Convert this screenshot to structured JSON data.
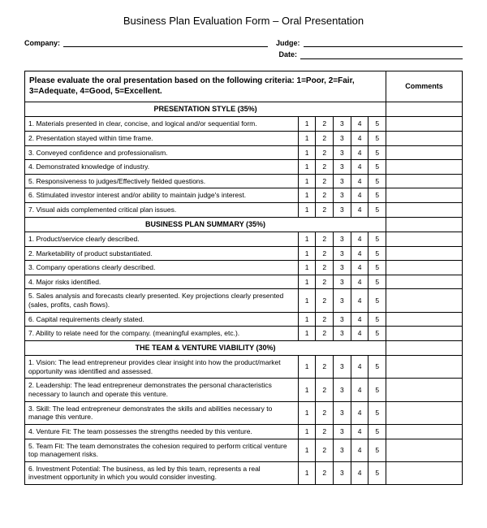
{
  "title": "Business Plan Evaluation Form – Oral Presentation",
  "labels": {
    "company": "Company:",
    "judge": "Judge:",
    "date": "Date:"
  },
  "criteria_header": "Please evaluate the oral presentation based on the following criteria: 1=Poor, 2=Fair, 3=Adequate, 4=Good, 5=Excellent.",
  "comments_header": "Comments",
  "scores": [
    "1",
    "2",
    "3",
    "4",
    "5"
  ],
  "sections": [
    {
      "header": "PRESENTATION STYLE (35%)",
      "rows": [
        "1.  Materials presented in clear, concise, and logical and/or sequential form.",
        "2.  Presentation stayed within time frame.",
        "3.  Conveyed confidence and professionalism.",
        "4.  Demonstrated knowledge of industry.",
        "5.  Responsiveness to judges/Effectively fielded questions.",
        "6.  Stimulated investor interest and/or ability to maintain judge's interest.",
        "7.  Visual aids complemented critical plan issues."
      ]
    },
    {
      "header": "BUSINESS PLAN SUMMARY (35%)",
      "rows": [
        "1.  Product/service clearly described.",
        "2.  Marketability of product substantiated.",
        "3.  Company operations clearly described.",
        "4.  Major risks identified.",
        "5.  Sales analysis and forecasts clearly presented.  Key projections clearly presented (sales, profits, cash flows).",
        "6.  Capital requirements clearly stated.",
        "7.  Ability to relate need for the company. (meaningful examples, etc.)."
      ]
    },
    {
      "header": "THE TEAM & VENTURE VIABILITY (30%)",
      "rows": [
        "1.  Vision:  The lead entrepreneur provides clear insight into how the product/market opportunity was identified and assessed.",
        "2.  Leadership:  The lead entrepreneur demonstrates the personal characteristics necessary to launch and operate this venture.",
        "3.  Skill:  The lead entrepreneur demonstrates the skills and abilities necessary to manage this venture.",
        "4.  Venture Fit:  The team possesses the strengths needed by this venture.",
        "5.  Team Fit:  The team demonstrates the cohesion required to perform critical venture top management risks.",
        "6.  Investment Potential:  The business, as led by this team, represents a real investment opportunity in which you would consider investing."
      ]
    }
  ]
}
